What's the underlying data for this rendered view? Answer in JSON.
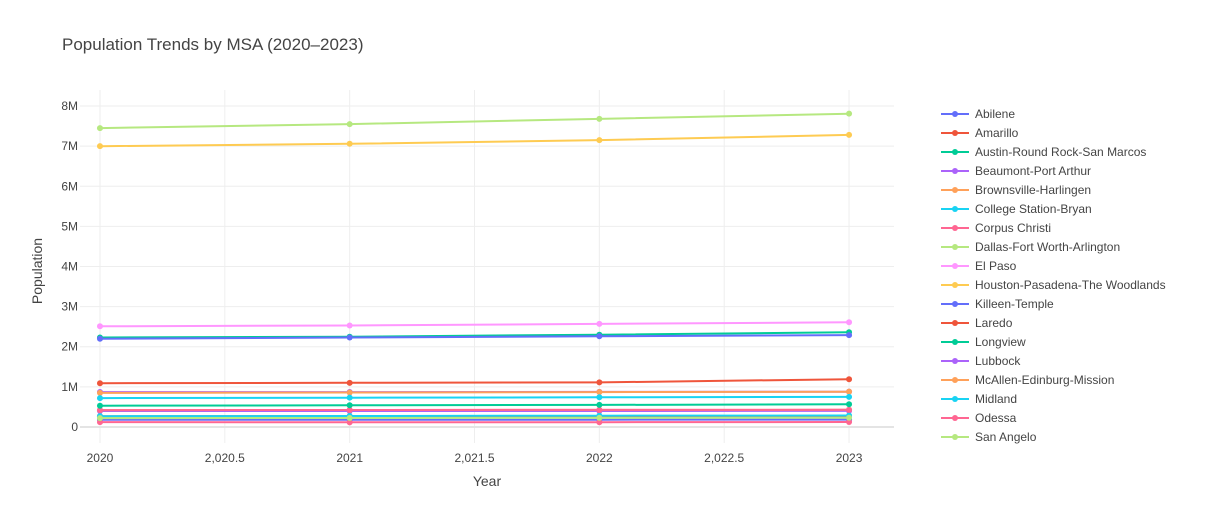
{
  "chart_data": {
    "type": "line",
    "title": "Population Trends by MSA (2020–2023)",
    "xlabel": "Year",
    "ylabel": "Population",
    "x": [
      2020,
      2021,
      2022,
      2023
    ],
    "x_ticks": [
      2020,
      2020.5,
      2021,
      2021.5,
      2022,
      2022.5,
      2023
    ],
    "x_tick_labels": [
      "2020",
      "2,020.5",
      "2021",
      "2,021.5",
      "2022",
      "2,022.5",
      "2023"
    ],
    "xlim": [
      2019.92,
      2023.18
    ],
    "y_ticks": [
      0,
      1000000,
      2000000,
      3000000,
      4000000,
      5000000,
      6000000,
      7000000,
      8000000
    ],
    "y_tick_labels": [
      "0",
      "1M",
      "2M",
      "3M",
      "4M",
      "5M",
      "6M",
      "7M",
      "8M"
    ],
    "ylim": [
      -400000,
      8400000
    ],
    "grid": true,
    "legend_position": "right",
    "series": [
      {
        "name": "Abilene",
        "color": "#636efa",
        "values": [
          178000,
          180000,
          182000,
          184000
        ]
      },
      {
        "name": "Amarillo",
        "color": "#ef553b",
        "values": [
          268000,
          270000,
          271000,
          272000
        ]
      },
      {
        "name": "Austin-Round Rock-San Marcos",
        "color": "#00cc96",
        "values": [
          2230000,
          2250000,
          2300000,
          2360000
        ]
      },
      {
        "name": "Beaumont-Port Arthur",
        "color": "#ab63fa",
        "values": [
          397000,
          398000,
          398000,
          400000
        ]
      },
      {
        "name": "Brownsville-Harlingen",
        "color": "#ffa15a",
        "values": [
          421000,
          423000,
          425000,
          428000
        ]
      },
      {
        "name": "College Station-Bryan",
        "color": "#19d3f3",
        "values": [
          269000,
          274000,
          280000,
          286000
        ]
      },
      {
        "name": "Corpus Christi",
        "color": "#ff6692",
        "values": [
          421000,
          423000,
          424000,
          427000
        ]
      },
      {
        "name": "Dallas-Fort Worth-Arlington",
        "color": "#b6e880",
        "values": [
          7450000,
          7550000,
          7680000,
          7810000
        ]
      },
      {
        "name": "El Paso",
        "color": "#ff97ff",
        "values": [
          2510000,
          2530000,
          2570000,
          2610000
        ]
      },
      {
        "name": "Houston-Pasadena-The Woodlands",
        "color": "#fecb52",
        "values": [
          7000000,
          7060000,
          7150000,
          7280000
        ]
      },
      {
        "name": "Killeen-Temple",
        "color": "#636efa",
        "values": [
          2200000,
          2230000,
          2260000,
          2290000
        ]
      },
      {
        "name": "Laredo",
        "color": "#ef553b",
        "values": [
          1090000,
          1100000,
          1110000,
          1190000
        ]
      },
      {
        "name": "Longview",
        "color": "#00cc96",
        "values": [
          530000,
          540000,
          550000,
          565000
        ]
      },
      {
        "name": "Lubbock",
        "color": "#ab63fa",
        "values": [
          870000,
          870000,
          875000,
          880000
        ]
      },
      {
        "name": "McAllen-Edinburg-Mission",
        "color": "#ffa15a",
        "values": [
          850000,
          860000,
          870000,
          880000
        ]
      },
      {
        "name": "Midland",
        "color": "#19d3f3",
        "values": [
          720000,
          730000,
          740000,
          750000
        ]
      },
      {
        "name": "Odessa",
        "color": "#ff6692",
        "values": [
          120000,
          115000,
          118000,
          124000
        ]
      },
      {
        "name": "San Angelo",
        "color": "#b6e880",
        "values": [
          220000,
          222000,
          225000,
          230000
        ]
      }
    ]
  }
}
